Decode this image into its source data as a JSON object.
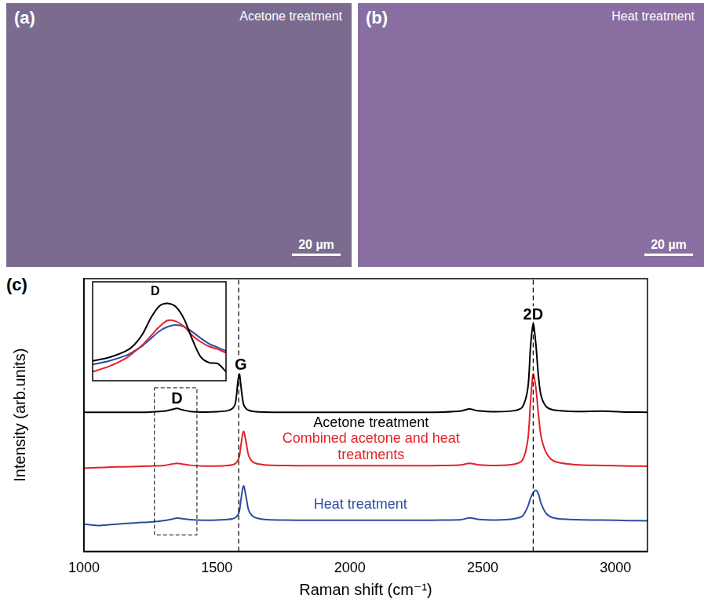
{
  "panels": [
    {
      "letter": "(a)",
      "label": "Acetone treatment",
      "scale_bar": "20 µm",
      "color": "#7a6b8f"
    },
    {
      "letter": "(b)",
      "label": "Heat treatment",
      "scale_bar": "20 µm",
      "color": "#896ea1"
    }
  ],
  "chart_letter": "(c)",
  "chart_data": [
    {
      "type": "line",
      "x_label": "Raman shift (cm⁻¹)",
      "y_label": "Intensity (arb.units)",
      "x": [
        1000,
        1050,
        1100,
        1150,
        1200,
        1250,
        1300,
        1330,
        1350,
        1370,
        1400,
        1450,
        1500,
        1540,
        1560,
        1570,
        1580,
        1585,
        1590,
        1600,
        1610,
        1620,
        1640,
        1680,
        1750,
        1850,
        1950,
        2050,
        2150,
        2250,
        2350,
        2420,
        2450,
        2480,
        2550,
        2620,
        2650,
        2670,
        2680,
        2690,
        2700,
        2710,
        2720,
        2740,
        2770,
        2850,
        2950,
        3050,
        3120
      ],
      "series": [
        {
          "name": "Acetone treatment",
          "color": "#000000",
          "label_at": [
            2080,
            47
          ],
          "values": [
            51,
            51,
            51,
            51,
            51,
            51.1,
            51.4,
            52,
            52.4,
            51.9,
            51.3,
            51.1,
            51.2,
            51.6,
            52.5,
            54.5,
            63,
            65,
            61,
            54,
            52.3,
            51.7,
            51.3,
            51.1,
            51,
            51,
            51,
            51,
            51,
            51,
            51.1,
            51.5,
            52.2,
            51.6,
            51.2,
            51.6,
            53,
            60,
            75,
            83.4,
            76,
            64,
            57,
            53,
            51.8,
            51.3,
            51.4,
            51.1,
            51
          ]
        },
        {
          "name": "Combined acetone and heat treatments",
          "color": "#e3232a",
          "label_at": [
            2080,
            41.2
          ],
          "values": [
            30.5,
            30.7,
            30.9,
            31,
            31.1,
            31.3,
            31.5,
            32,
            32.3,
            32,
            31.6,
            31.3,
            31.3,
            31.5,
            31.8,
            32.2,
            33.5,
            35,
            38.5,
            44,
            40,
            35,
            32.5,
            31.7,
            31.5,
            31.4,
            31.4,
            31.4,
            31.4,
            31.4,
            31.5,
            31.7,
            32.3,
            31.8,
            31.5,
            32,
            33.5,
            41,
            55,
            65,
            60,
            50,
            42,
            36,
            33,
            31.8,
            31.5,
            31.3,
            31.2
          ]
        },
        {
          "name": "Heat treatment",
          "color": "#2b4ea2",
          "label_at": [
            2040,
            17
          ],
          "values": [
            10,
            9.5,
            9.8,
            10.2,
            10.5,
            10.8,
            11.3,
            11.8,
            12.2,
            12,
            11.6,
            11.4,
            11.5,
            11.7,
            12,
            12.4,
            13.5,
            15,
            18.5,
            24,
            20,
            15,
            12.6,
            11.7,
            11.5,
            11.4,
            11.4,
            11.4,
            11.4,
            11.4,
            11.5,
            11.6,
            12.3,
            11.8,
            11.5,
            12,
            13,
            16.5,
            19.5,
            21.5,
            22.4,
            21,
            17.5,
            13.8,
            12.2,
            11.6,
            11.5,
            11.3,
            11.2
          ]
        }
      ],
      "xlim": [
        1000,
        3120
      ],
      "xticks": [
        1000,
        1500,
        2000,
        2500,
        3000
      ],
      "ylim": [
        0,
        100
      ],
      "tick_labels": "x",
      "grid": false,
      "peak_labels": [
        {
          "text": "D",
          "x": 1350,
          "y": 56
        },
        {
          "text": "G",
          "x": 1590,
          "y": 68.5
        },
        {
          "text": "2D",
          "x": 2690,
          "y": 87
        }
      ],
      "vlines": [
        1582,
        2690
      ],
      "box": {
        "x": [
          1265,
          1425
        ],
        "y": [
          6,
          60
        ]
      }
    },
    {
      "type": "line",
      "x": [
        1270,
        1290,
        1310,
        1320,
        1330,
        1340,
        1350,
        1360,
        1370,
        1380,
        1390,
        1400,
        1410,
        1420,
        1430
      ],
      "series": [
        {
          "color": "#000000",
          "values": [
            2.2,
            2.6,
            3.3,
            4.0,
            5.2,
            7.0,
            8.3,
            8.6,
            8.2,
            6.8,
            4.5,
            2.6,
            2.0,
            1.9,
            1.0
          ]
        },
        {
          "color": "#e3232a",
          "values": [
            1.0,
            1.6,
            2.5,
            3.2,
            4.0,
            5.0,
            6.0,
            6.7,
            6.6,
            6.0,
            5.0,
            4.3,
            3.8,
            3.5,
            3.1
          ]
        },
        {
          "color": "#2b4ea2",
          "values": [
            1.8,
            2.2,
            2.8,
            3.3,
            3.9,
            4.7,
            5.5,
            6.0,
            6.2,
            6.0,
            5.4,
            4.7,
            4.1,
            3.7,
            3.3
          ]
        }
      ],
      "xlim": [
        1270,
        1430
      ],
      "ylim": [
        0,
        11
      ],
      "tick_labels": false,
      "grid": false,
      "peak_labels": [
        {
          "text": "D",
          "x": 1345,
          "y": 10
        }
      ]
    }
  ]
}
